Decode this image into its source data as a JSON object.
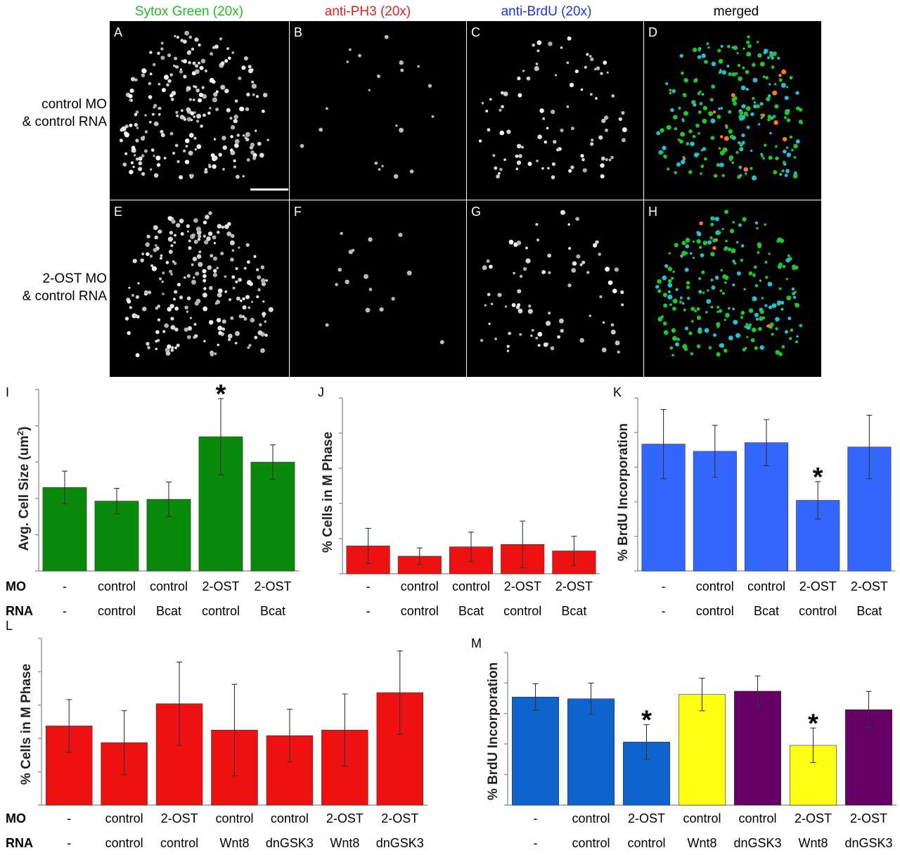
{
  "micrograph": {
    "column_headers": [
      {
        "text": "Sytox Green (20x)",
        "color": "#22bb22"
      },
      {
        "text": "anti-PH3 (20x)",
        "color": "#e02020"
      },
      {
        "text": "anti-BrdU (20x)",
        "color": "#2233dd"
      },
      {
        "text": "merged",
        "color": "#000000"
      }
    ],
    "row_labels": [
      {
        "line1": "control MO",
        "line2": "& control RNA"
      },
      {
        "line1": "2-OST MO",
        "line2": "& control RNA"
      }
    ],
    "panel_letters": [
      "A",
      "B",
      "C",
      "D",
      "E",
      "F",
      "G",
      "H"
    ]
  },
  "chart_data": [
    {
      "panel": "I",
      "type": "bar",
      "ylabel_html": "Avg. Cell Size (um²)",
      "ylabel": "Avg. Cell Size (um2)",
      "ylim": [
        0,
        10
      ],
      "row_labels": [
        "MO",
        "RNA"
      ],
      "categories_mo": [
        "-",
        "control",
        "control",
        "2-OST",
        "2-OST"
      ],
      "categories_rna": [
        "-",
        "control",
        "Bcat",
        "control",
        "Bcat"
      ],
      "values": [
        4.6,
        3.85,
        3.95,
        7.4,
        6.0
      ],
      "errors": [
        0.9,
        0.7,
        0.95,
        2.1,
        0.95
      ],
      "colors": [
        "#0a8a0a",
        "#0a8a0a",
        "#0a8a0a",
        "#0a8a0a",
        "#0a8a0a"
      ],
      "significant": [
        false,
        false,
        false,
        true,
        false
      ]
    },
    {
      "panel": "J",
      "type": "bar",
      "ylabel": "% Cells in M Phase",
      "ylim": [
        0,
        6
      ],
      "row_labels": [
        "MO",
        "RNA"
      ],
      "categories_mo": [
        "-",
        "control",
        "control",
        "2-OST",
        "2-OST"
      ],
      "categories_rna": [
        "-",
        "control",
        "Bcat",
        "control",
        "Bcat"
      ],
      "values": [
        0.95,
        0.6,
        0.92,
        1.0,
        0.78
      ],
      "errors": [
        0.6,
        0.28,
        0.5,
        0.8,
        0.5
      ],
      "colors": [
        "#ee1111",
        "#ee1111",
        "#ee1111",
        "#ee1111",
        "#ee1111"
      ],
      "significant": [
        false,
        false,
        false,
        false,
        false
      ]
    },
    {
      "panel": "K",
      "type": "bar",
      "ylabel": "% BrdU Incorporation",
      "ylim": [
        0,
        60
      ],
      "row_labels": [
        "MO",
        "RNA"
      ],
      "categories_mo": [
        "-",
        "control",
        "control",
        "2-OST",
        "2-OST"
      ],
      "categories_rna": [
        "-",
        "control",
        "Bcat",
        "control",
        "Bcat"
      ],
      "values": [
        44,
        41.5,
        44.5,
        24.5,
        43
      ],
      "errors": [
        12,
        9,
        8,
        6.5,
        11
      ],
      "colors": [
        "#3366ff",
        "#3366ff",
        "#3366ff",
        "#3366ff",
        "#3366ff"
      ],
      "significant": [
        false,
        false,
        false,
        true,
        false
      ]
    },
    {
      "panel": "L",
      "type": "bar",
      "ylabel": "% Cells in M Phase",
      "ylim": [
        0,
        6
      ],
      "row_labels": [
        "MO",
        "RNA"
      ],
      "categories_mo": [
        "-",
        "control",
        "2-OST",
        "control",
        "control",
        "2-OST",
        "2-OST"
      ],
      "categories_rna": [
        "-",
        "control",
        "control",
        "Wnt8",
        "dnGSK3",
        "Wnt8",
        "dnGSK3"
      ],
      "values": [
        2.85,
        2.25,
        3.65,
        2.7,
        2.5,
        2.7,
        4.05
      ],
      "errors": [
        0.95,
        1.15,
        1.5,
        1.65,
        0.95,
        1.3,
        1.5
      ],
      "colors": [
        "#ee1111",
        "#ee1111",
        "#ee1111",
        "#ee1111",
        "#ee1111",
        "#ee1111",
        "#ee1111"
      ],
      "significant": [
        false,
        false,
        false,
        false,
        false,
        false,
        false
      ]
    },
    {
      "panel": "M",
      "type": "bar",
      "ylabel": "% BrdU Incorporation",
      "ylim": [
        0,
        60
      ],
      "row_labels": [
        "MO",
        "RNA"
      ],
      "categories_mo": [
        "-",
        "control",
        "2-OST",
        "control",
        "control",
        "2-OST",
        "2-OST"
      ],
      "categories_rna": [
        "-",
        "control",
        "control",
        "Wnt8",
        "dnGSK3",
        "Wnt8",
        "dnGSK3"
      ],
      "values": [
        42.5,
        41.8,
        24.8,
        43.5,
        44.8,
        23.5,
        37.5
      ],
      "errors": [
        5.2,
        6.2,
        6.8,
        6.4,
        6.0,
        6.8,
        7.2
      ],
      "colors": [
        "#0e63cc",
        "#0e63cc",
        "#0e63cc",
        "#ffff11",
        "#660066",
        "#ffff11",
        "#660066"
      ],
      "significant": [
        false,
        false,
        true,
        false,
        false,
        true,
        false
      ]
    }
  ]
}
